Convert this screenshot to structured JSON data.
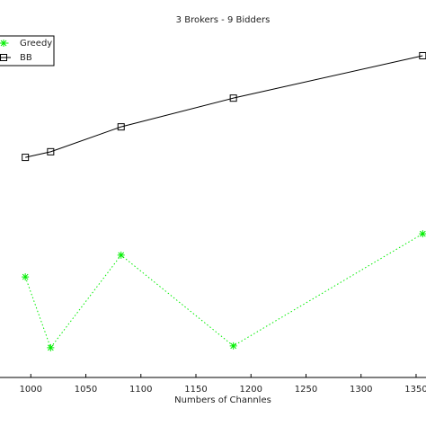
{
  "chart_data": {
    "type": "line",
    "title": "3 Brokers - 9 Bidders",
    "x_label": "Numbers of Channles",
    "x": [
      995,
      1018,
      1082,
      1184,
      1356
    ],
    "series": [
      {
        "name": "Greedy",
        "color": "#00ee00",
        "values": [
          28.7,
          8.5,
          34.9,
          9.0,
          41.0
        ]
      },
      {
        "name": "BB",
        "color": "#000000",
        "values": [
          62.8,
          64.4,
          71.5,
          79.7,
          91.8
        ]
      }
    ],
    "xlim": [
      972,
      1359
    ],
    "ylim": [
      0,
      100
    ],
    "xticks": [
      1000,
      1050,
      1100,
      1150,
      1200,
      1250,
      1300,
      1350
    ],
    "legend": "upper left"
  }
}
